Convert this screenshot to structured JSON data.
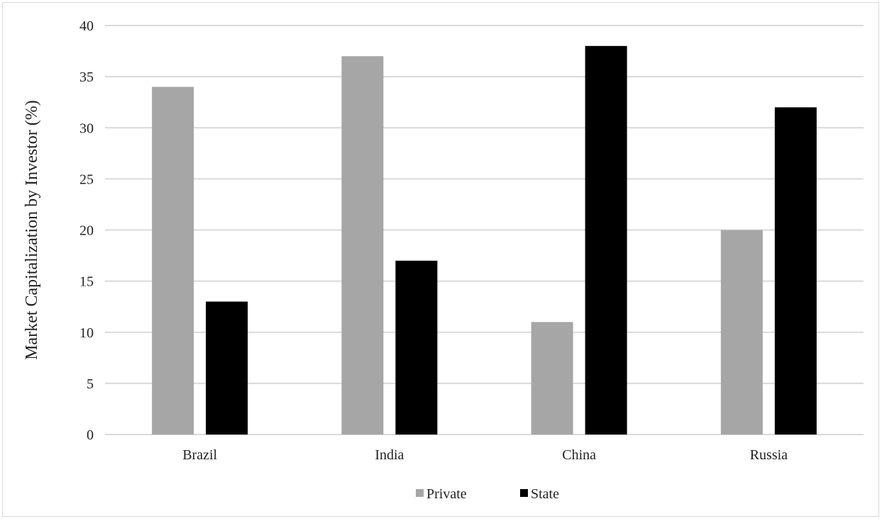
{
  "chart_data": {
    "type": "bar",
    "title": "",
    "xlabel": "",
    "ylabel": "Market Capitalization by Investor (%)",
    "categories": [
      "Brazil",
      "India",
      "China",
      "Russia"
    ],
    "series": [
      {
        "name": "Private",
        "values": [
          34,
          37,
          11,
          20
        ]
      },
      {
        "name": "State",
        "values": [
          13,
          17,
          38,
          32
        ]
      }
    ],
    "ylim": [
      0,
      40
    ],
    "yticks": [
      "0",
      "5",
      "10",
      "15",
      "20",
      "25",
      "30",
      "35",
      "40"
    ],
    "grid": true,
    "legend_position": "bottom",
    "colors": {
      "Private": "#a6a6a6",
      "State": "#000000",
      "grid": "#d9d9d9"
    }
  }
}
